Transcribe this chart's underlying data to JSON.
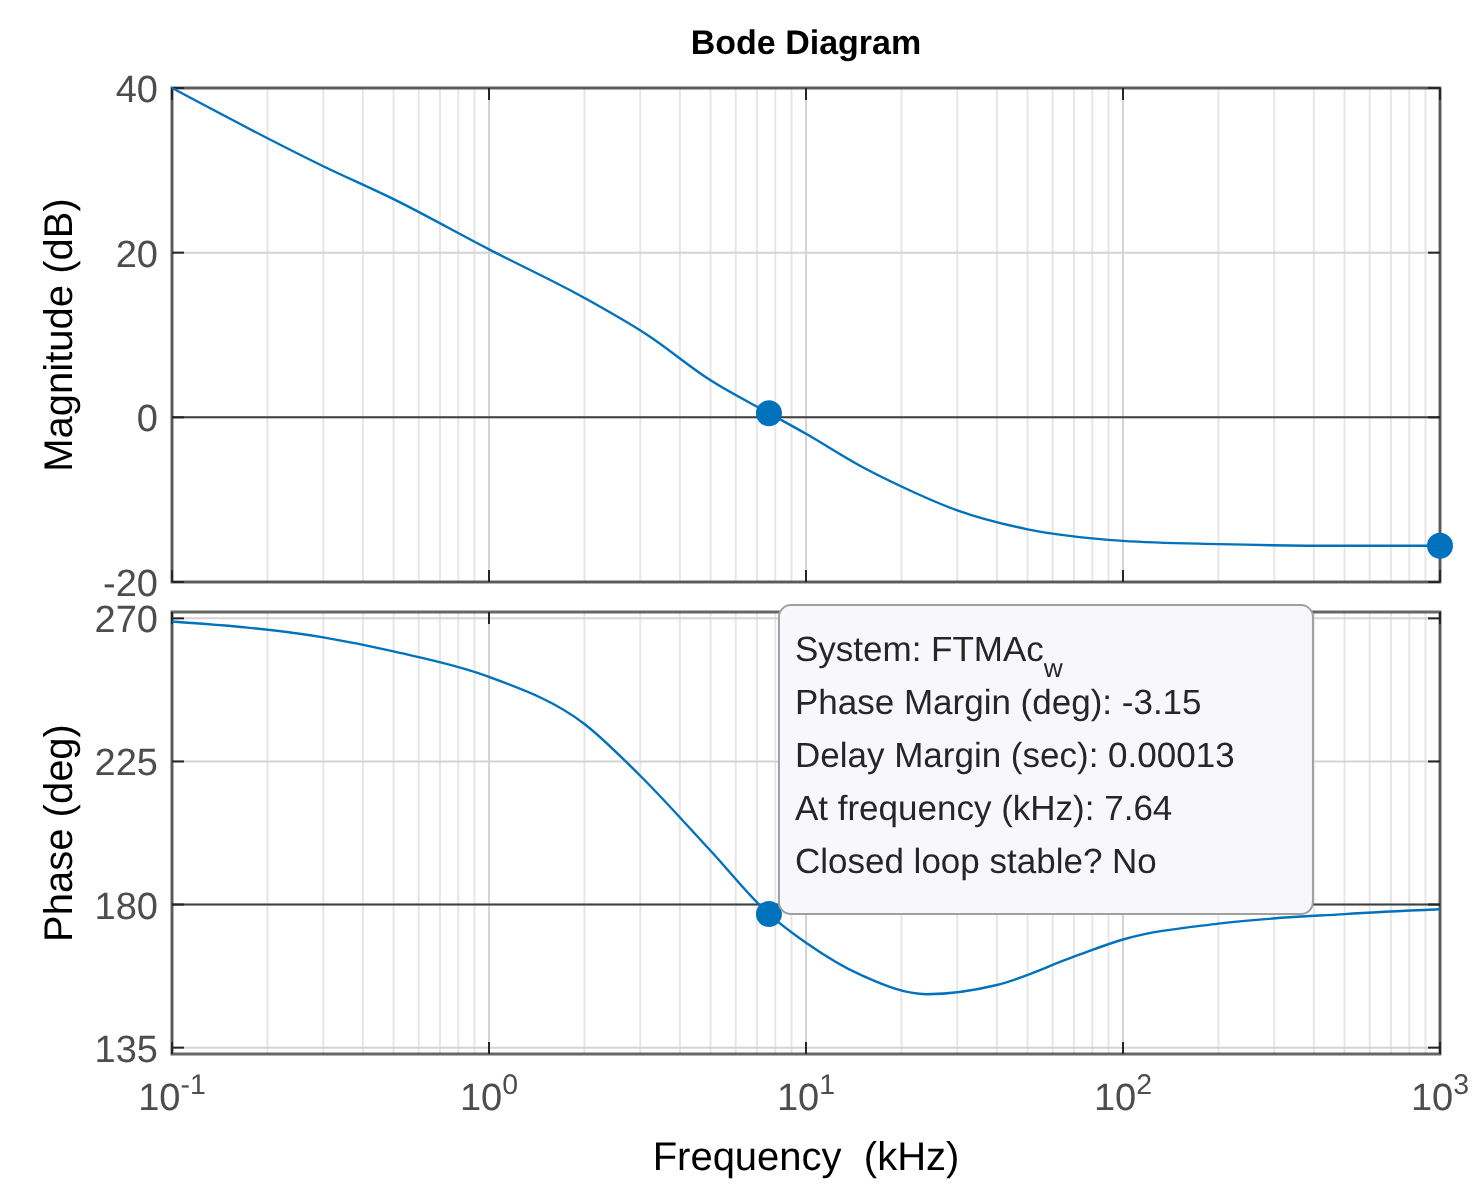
{
  "chart_data": [
    {
      "type": "line",
      "title": "Bode Diagram",
      "ylabel": "Magnitude (dB)",
      "log": "x",
      "grid": true,
      "tick_labels": "y",
      "xlim": [
        0.1,
        1000
      ],
      "ylim": [
        -20,
        40
      ],
      "xticks": [
        0.1,
        1,
        10,
        100,
        1000
      ],
      "yticks": [
        -20,
        0,
        20,
        40
      ],
      "ref_lines": [
        {
          "axis": "y",
          "value": 0,
          "color": "#404040"
        }
      ],
      "series": [
        {
          "type": "line",
          "color": "#0072bd",
          "x": [
            0.1,
            0.3,
            0.5,
            1,
            2,
            3.16,
            5,
            7.64,
            10,
            15,
            20,
            30,
            50,
            100,
            200,
            500,
            1000
          ],
          "values": [
            40,
            30.5,
            26.5,
            20.4,
            14.5,
            10,
            4.5,
            0.5,
            -2,
            -6,
            -8.4,
            -11.3,
            -13.6,
            -15,
            -15.4,
            -15.6,
            -15.6
          ]
        },
        {
          "type": "scatter",
          "color": "#0072bd",
          "marker": "circle",
          "x": [
            7.64
          ],
          "values": [
            0.5
          ]
        },
        {
          "type": "scatter",
          "color": "#0072bd",
          "marker": "circle",
          "x": [
            1000
          ],
          "values": [
            -15.6
          ]
        }
      ]
    },
    {
      "type": "line",
      "ylabel": "Phase (deg)",
      "xlabel": "Frequency  (kHz)",
      "log": "x",
      "grid": true,
      "xlim": [
        0.1,
        1000
      ],
      "ylim": [
        133,
        272
      ],
      "xticks": [
        {
          "value": 0.1,
          "label": "10$^{-1}$"
        },
        {
          "value": 1,
          "label": "10$^{0}$"
        },
        {
          "value": 10,
          "label": "10$^{1}$"
        },
        {
          "value": 100,
          "label": "10$^{2}$"
        },
        {
          "value": 1000,
          "label": "10$^{3}$"
        }
      ],
      "yticks": [
        135,
        180,
        225,
        270
      ],
      "ref_lines": [
        {
          "axis": "y",
          "value": 180,
          "color": "#404040"
        }
      ],
      "annotations": [
        {
          "text": "System: FTMAc$_{w}$\nPhase Margin (deg): -3.15\nDelay Margin (sec): 0.00013\nAt frequency (kHz): 7.64\nClosed loop stable? No",
          "x": 7.64,
          "y": 177
        }
      ],
      "series": [
        {
          "type": "line",
          "color": "#0072bd",
          "x": [
            0.1,
            0.3,
            0.5,
            1,
            2,
            3,
            5,
            7.64,
            10,
            15,
            24,
            40,
            70,
            100,
            200,
            500,
            1000
          ],
          "values": [
            269,
            264,
            259.6,
            251.6,
            236.8,
            220.5,
            196.9,
            177,
            168,
            157.7,
            151.8,
            154.7,
            163.6,
            169,
            174,
            177,
            178.5
          ]
        },
        {
          "type": "scatter",
          "color": "#0072bd",
          "marker": "circle",
          "x": [
            7.64
          ],
          "values": [
            177
          ]
        }
      ]
    }
  ]
}
